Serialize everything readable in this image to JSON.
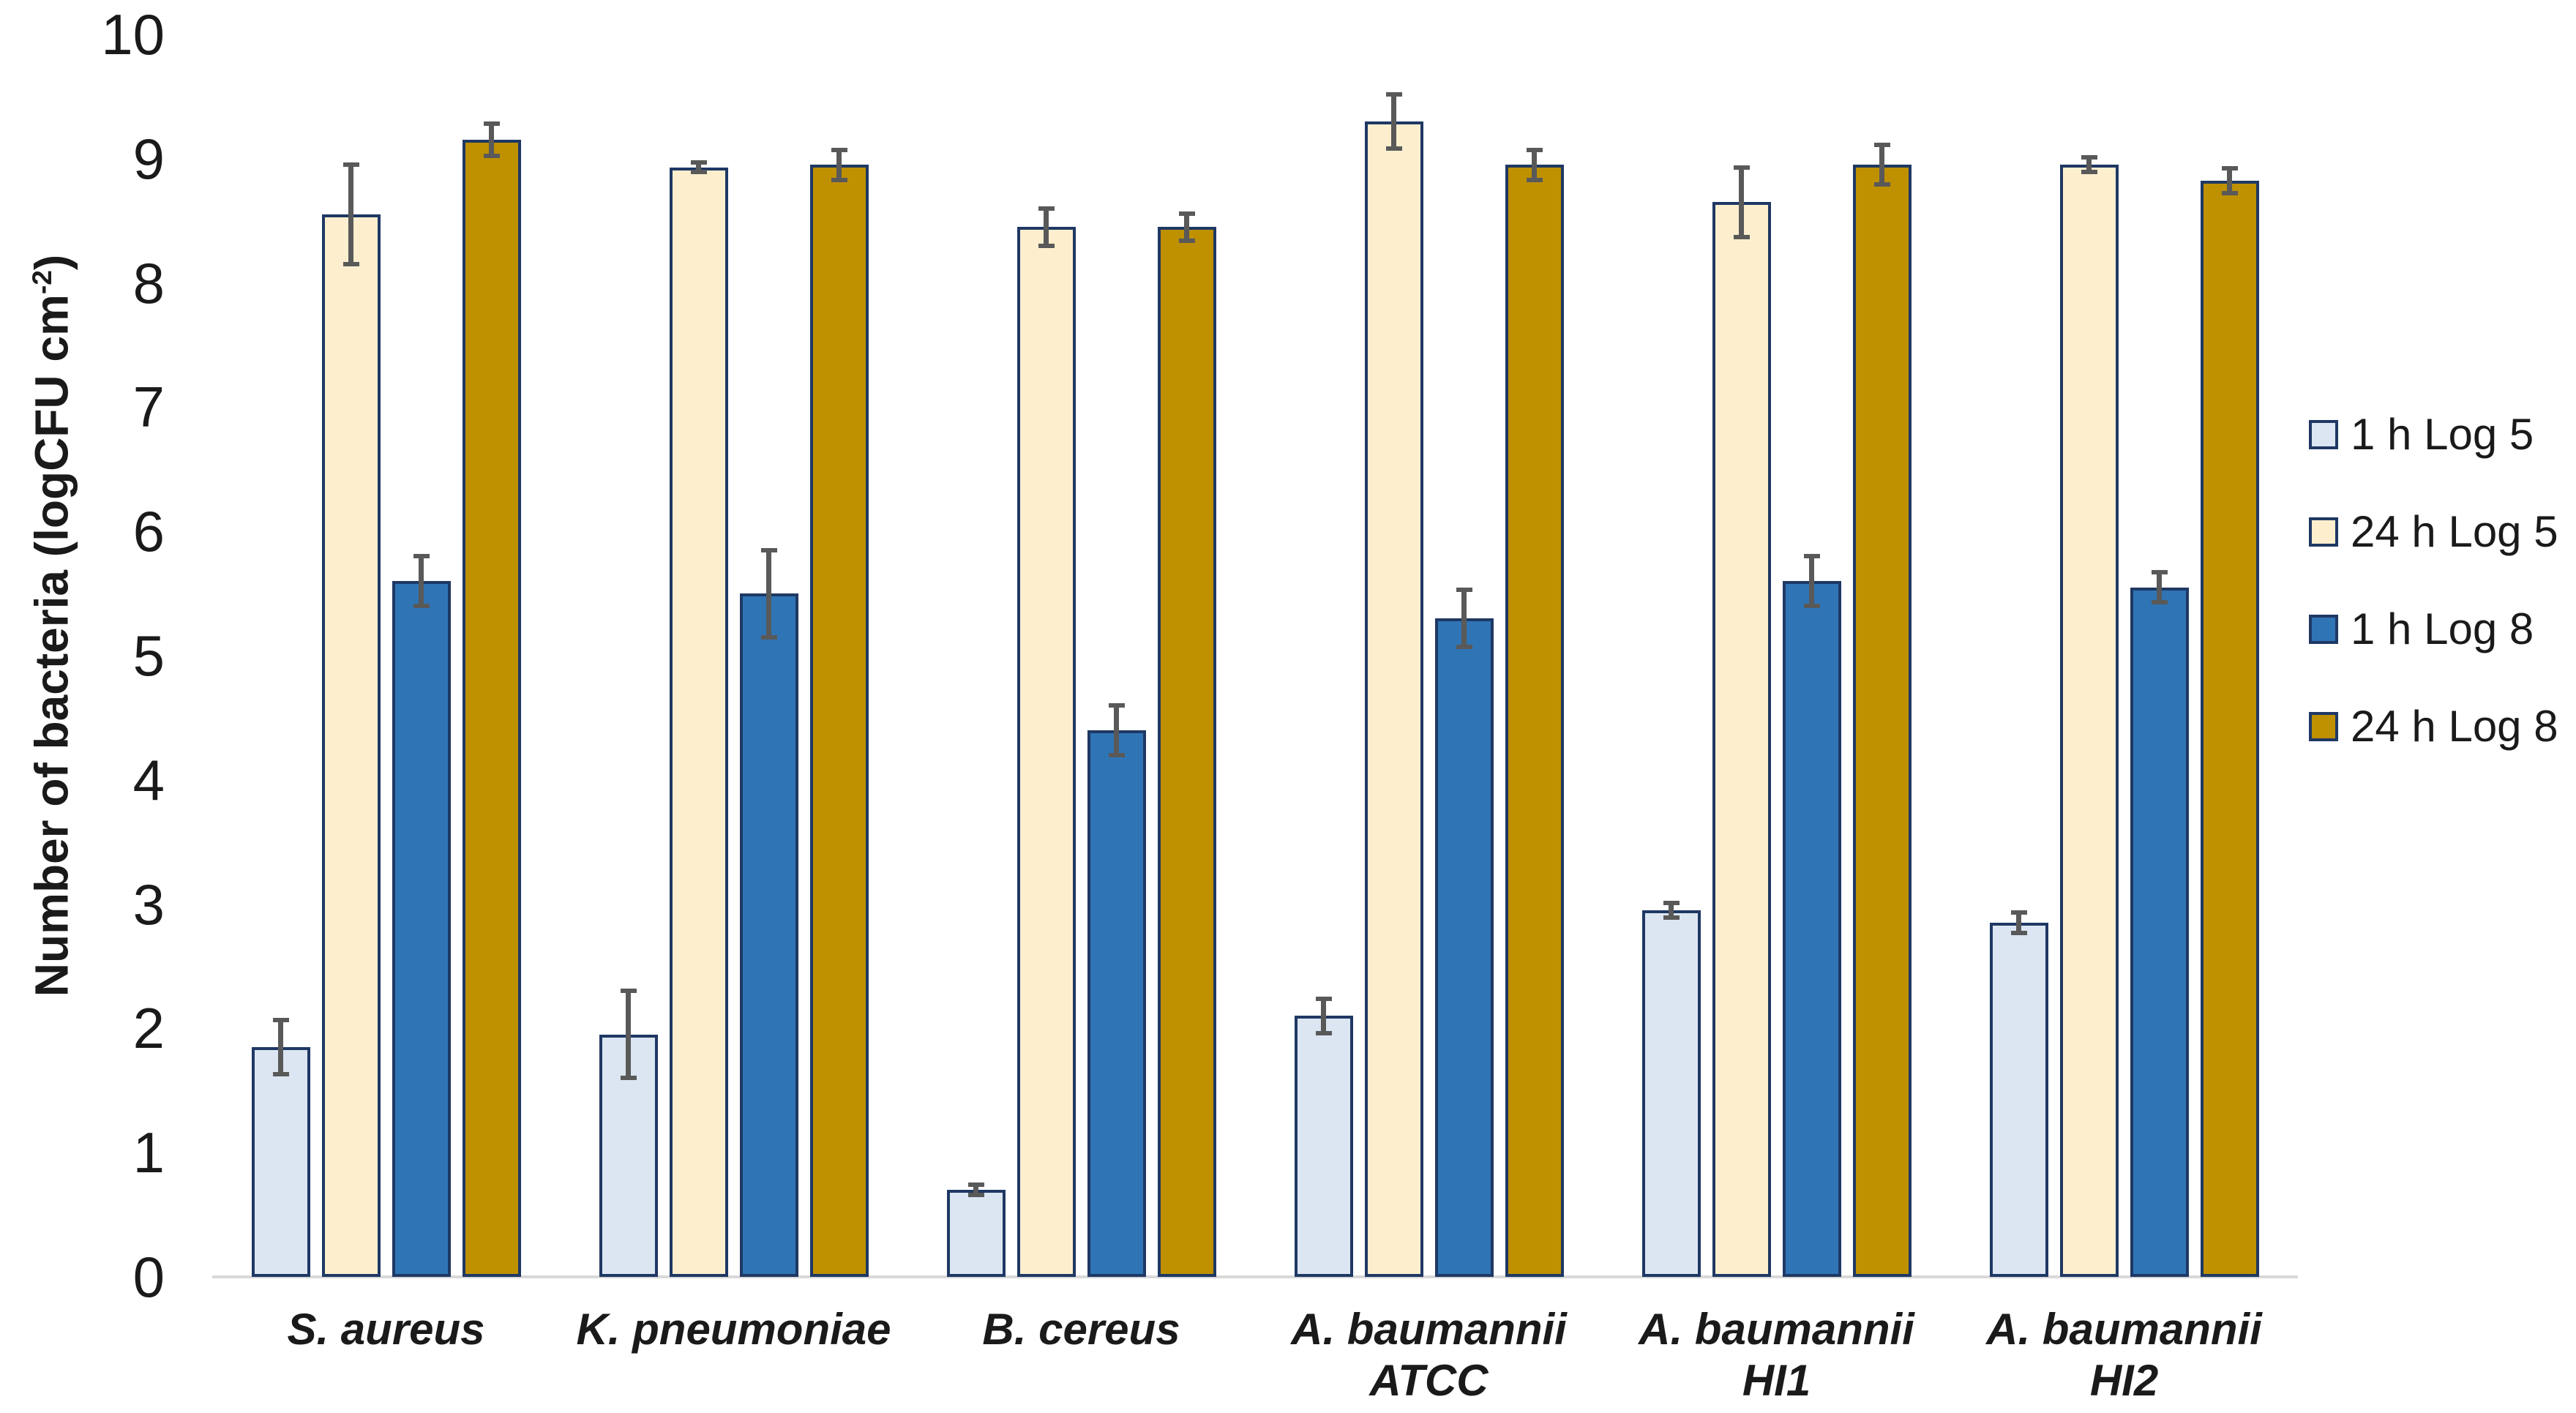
{
  "figure": {
    "background": "#ffffff",
    "text_color": "#1a1a1a"
  },
  "y_axis": {
    "title_main": "Number of bacteria (logCFU cm",
    "title_sup": "-2",
    "title_end": ")"
  },
  "chart_data": {
    "type": "bar",
    "title": "",
    "xlabel": "",
    "ylabel": "Number of bacteria (logCFU cm^-2)",
    "ylim": [
      0,
      10
    ],
    "y_ticks": [
      0,
      1,
      2,
      3,
      4,
      5,
      6,
      7,
      8,
      9,
      10
    ],
    "grid": false,
    "legend_position": "right",
    "categories_lines": [
      [
        "S. aureus"
      ],
      [
        "K. pneumoniae"
      ],
      [
        "B. cereus"
      ],
      [
        "A. baumannii",
        "ATCC"
      ],
      [
        "A. baumannii",
        "HI1"
      ],
      [
        "A. baumannii",
        "HI2"
      ]
    ],
    "series": [
      {
        "name": "1 h Log 5",
        "fill": "#DCE6F2",
        "values": [
          1.85,
          1.95,
          0.7,
          2.1,
          2.95,
          2.85
        ],
        "errors": [
          0.22,
          0.35,
          0.04,
          0.14,
          0.06,
          0.08
        ]
      },
      {
        "name": "24 h Log 5",
        "fill": "#FDEFCE",
        "values": [
          8.55,
          8.93,
          8.45,
          9.3,
          8.65,
          8.95
        ],
        "errors": [
          0.4,
          0.04,
          0.15,
          0.22,
          0.28,
          0.06
        ]
      },
      {
        "name": "1 h Log 8",
        "fill": "#2F75B6",
        "values": [
          5.6,
          5.5,
          4.4,
          5.3,
          5.6,
          5.55
        ],
        "errors": [
          0.2,
          0.35,
          0.2,
          0.23,
          0.2,
          0.12
        ]
      },
      {
        "name": "24 h Log 8",
        "fill": "#BF9000",
        "values": [
          9.15,
          8.95,
          8.45,
          8.95,
          8.95,
          8.82
        ],
        "errors": [
          0.13,
          0.12,
          0.11,
          0.12,
          0.16,
          0.1
        ]
      }
    ],
    "bar_border_color": "#1F3864",
    "error_bar_color": "#595959",
    "axis_line_color": "#D9D9D9"
  }
}
